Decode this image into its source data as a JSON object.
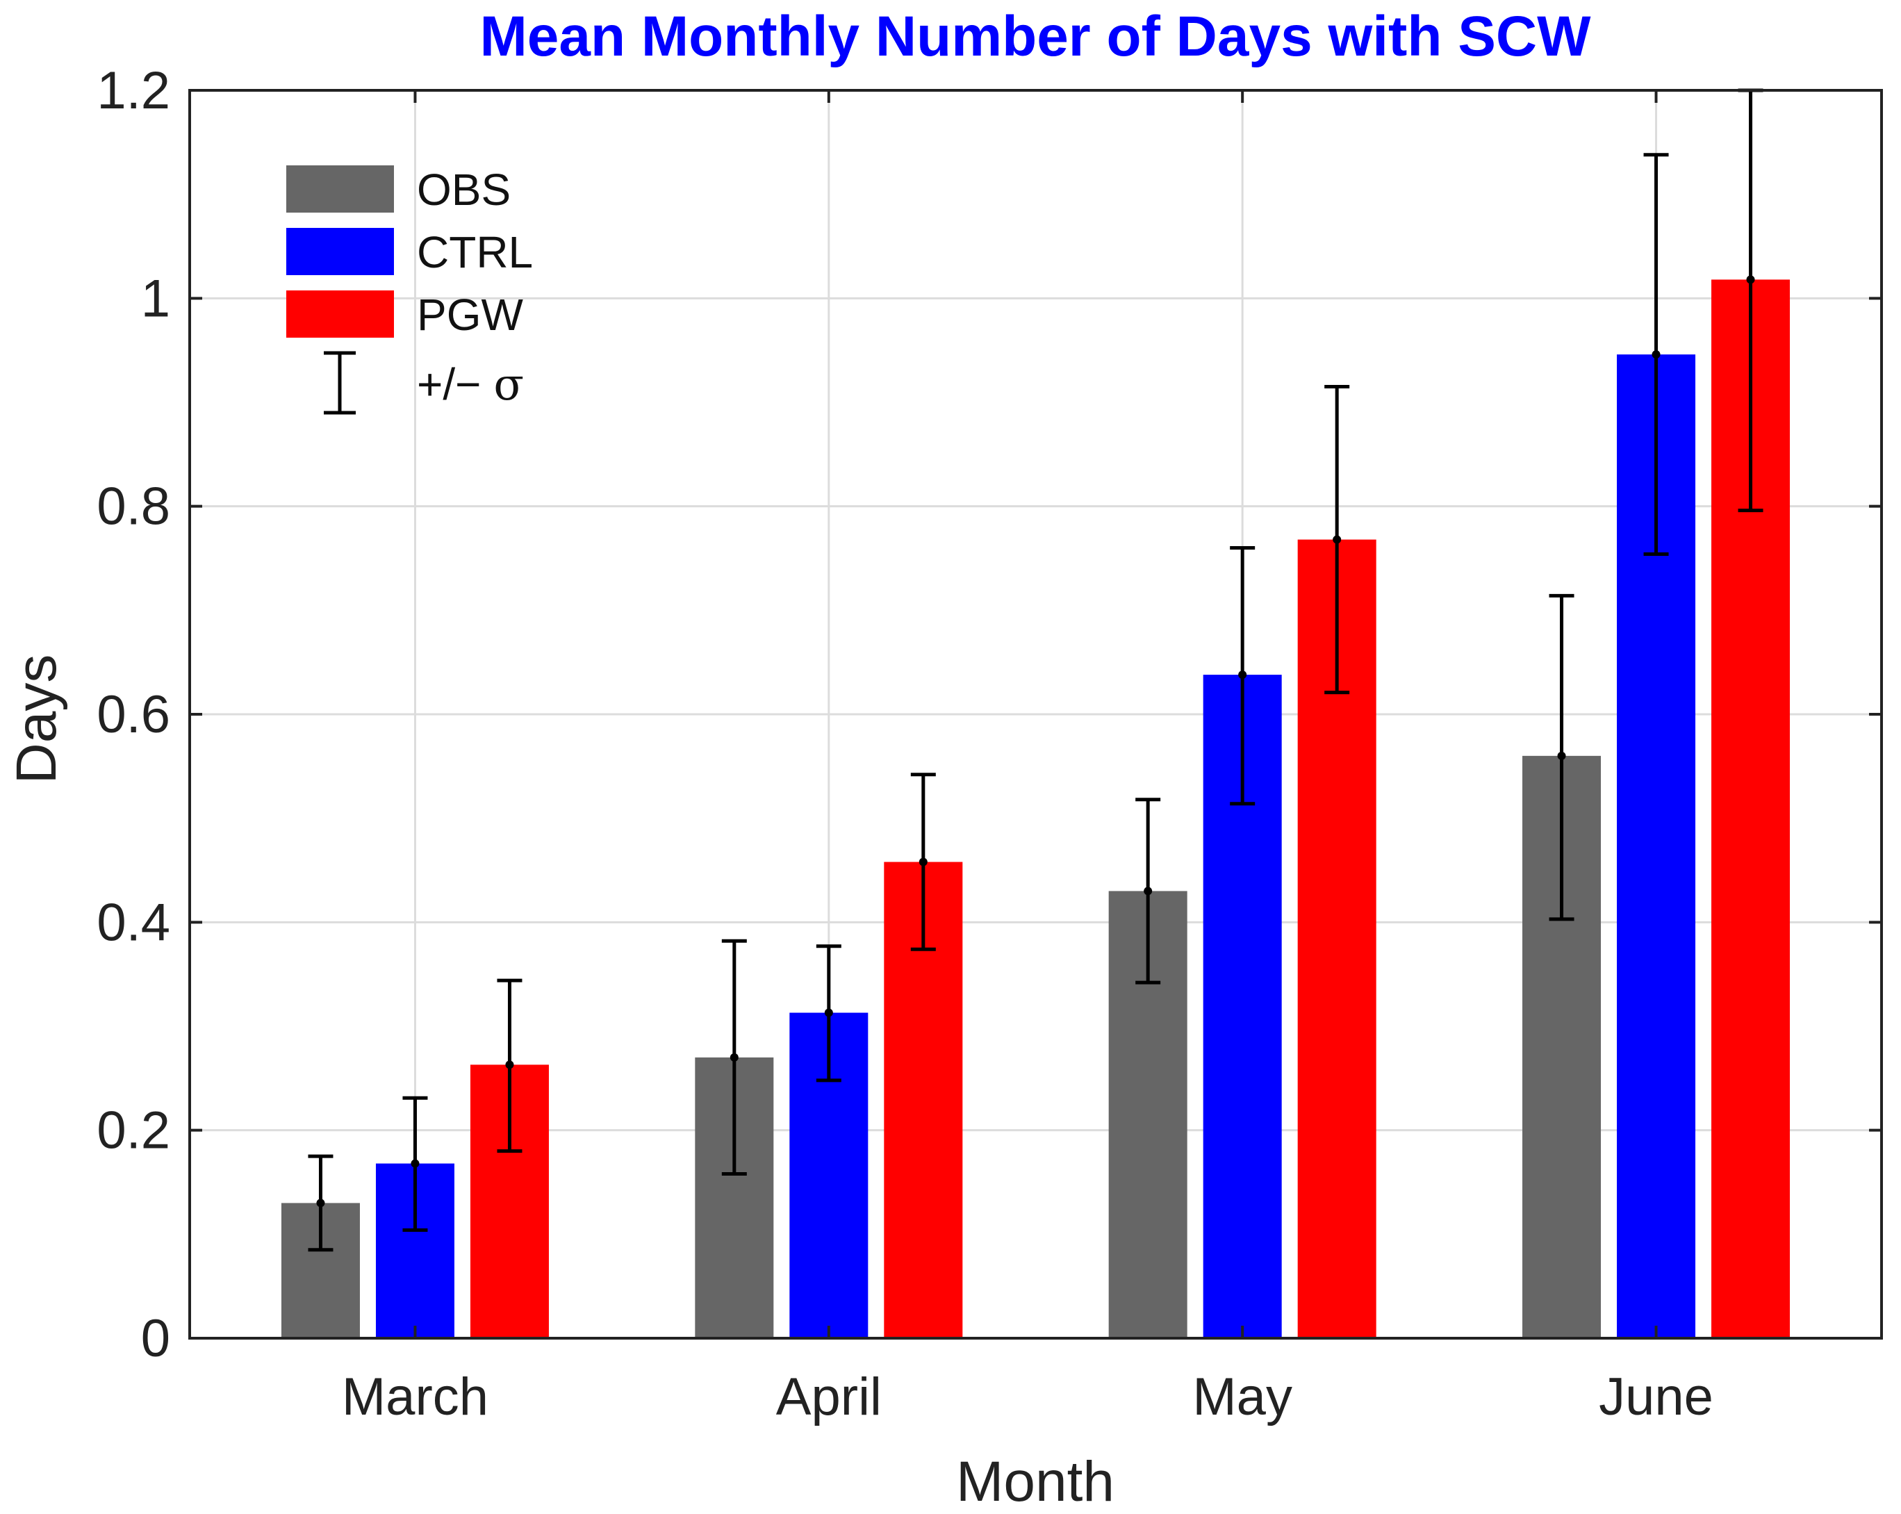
{
  "chart_data": {
    "type": "bar",
    "title": "Mean Monthly Number of Days with SCW",
    "title_color": "#0000ff",
    "xlabel": "Month",
    "ylabel": "Days",
    "categories": [
      "March",
      "April",
      "May",
      "June"
    ],
    "ylim": [
      0,
      1.2
    ],
    "yticks": [
      0,
      0.2,
      0.4,
      0.6,
      0.8,
      1,
      1.2
    ],
    "ytick_labels": [
      "0",
      "0.2",
      "0.4",
      "0.6",
      "0.8",
      "1",
      "1.2"
    ],
    "grid": true,
    "legend_position": "top-left",
    "series": [
      {
        "name": "OBS",
        "color": "#666666",
        "values": [
          0.13,
          0.27,
          0.43,
          0.56
        ],
        "err_low": [
          0.085,
          0.158,
          0.342,
          0.403
        ],
        "err_high": [
          0.175,
          0.382,
          0.518,
          0.714
        ]
      },
      {
        "name": "CTRL",
        "color": "#0000ff",
        "values": [
          0.168,
          0.313,
          0.638,
          0.946
        ],
        "err_low": [
          0.104,
          0.248,
          0.514,
          0.754
        ],
        "err_high": [
          0.231,
          0.377,
          0.76,
          1.138
        ]
      },
      {
        "name": "PGW",
        "color": "#ff0000",
        "values": [
          0.263,
          0.458,
          0.768,
          1.018
        ],
        "err_low": [
          0.18,
          0.374,
          0.621,
          0.796
        ],
        "err_high": [
          0.344,
          0.542,
          0.915,
          1.2
        ]
      }
    ],
    "error_legend_label": "+/− ",
    "error_legend_symbol": "σ"
  }
}
